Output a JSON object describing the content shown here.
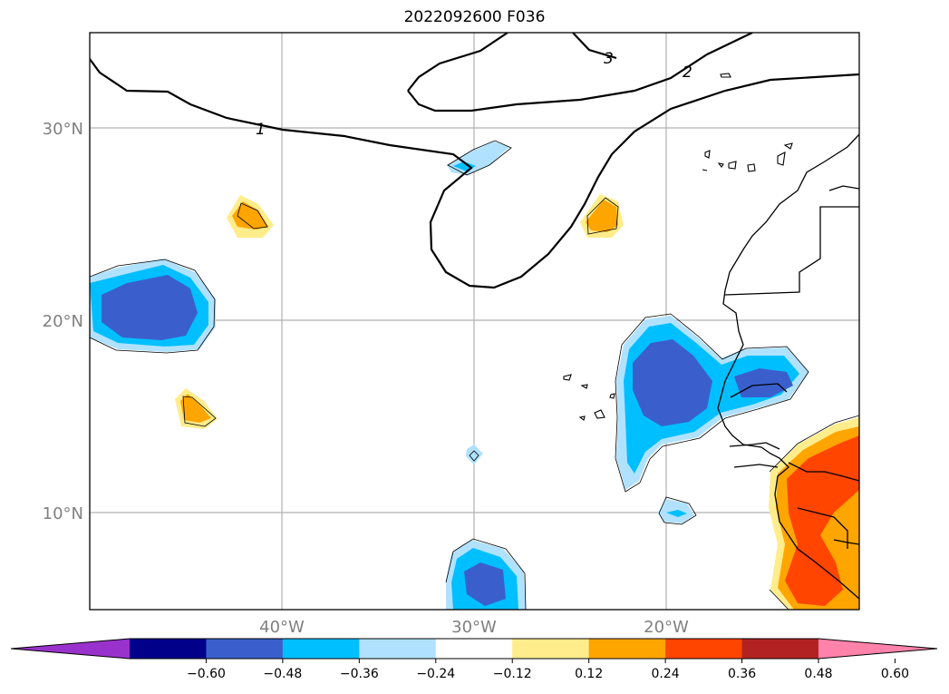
{
  "title": "2022092600 F036",
  "latitude_labels": [
    "30°N",
    "20°N",
    "10°N"
  ],
  "longitude_labels": [
    "40°W",
    "30°W",
    "20°W"
  ],
  "contour_labels": [
    "1",
    "2",
    "3"
  ],
  "colorbar": {
    "ticks": [
      "−0.60",
      "−0.48",
      "−0.36",
      "−0.24",
      "−0.12",
      "0.12",
      "0.24",
      "0.36",
      "0.48",
      "0.60"
    ],
    "colors": [
      "#9932cc",
      "#00008b",
      "#3a5fcd",
      "#00bfff",
      "#b0e2ff",
      "#ffffff",
      "#ffec8b",
      "#ffa500",
      "#ff4500",
      "#b22222",
      "#ff82ab"
    ]
  }
}
